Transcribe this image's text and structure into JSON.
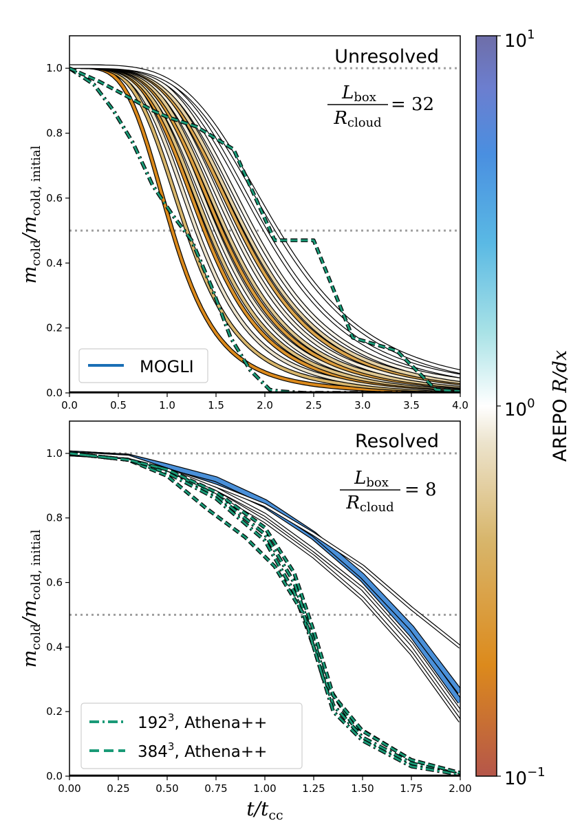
{
  "chart_data": [
    {
      "type": "line",
      "panel": "top",
      "annotation": "Unresolved",
      "ratio_numerator": "L",
      "ratio_numerator_sub": "box",
      "ratio_denominator": "R",
      "ratio_denominator_sub": "cloud",
      "ratio_value": "= 32",
      "xlim": [
        0,
        4
      ],
      "ylim": [
        0,
        1.1
      ],
      "xticks": [
        "0.0",
        "0.5",
        "1.0",
        "1.5",
        "2.0",
        "2.5",
        "3.0",
        "3.5",
        "4.0"
      ],
      "yticks": [
        "0.0",
        "0.2",
        "0.4",
        "0.6",
        "0.8",
        "1.0"
      ],
      "ylabel_main": "m",
      "ylabel_sub1": "cold",
      "ylabel_mid": "/m",
      "ylabel_sub2": "cold, initial",
      "reference_lines": [
        1.0,
        0.5
      ],
      "legend_label": "MOGLI",
      "legend_color": "#1a6fb5",
      "t_half": [
        1.05,
        1.2,
        1.3,
        1.38,
        1.43,
        1.5,
        1.55,
        1.6,
        1.68,
        1.75,
        1.8,
        1.88,
        2.0,
        2.12
      ],
      "athena_192": {
        "x": [
          0,
          0.25,
          0.45,
          0.65,
          0.85,
          1.05,
          1.25,
          1.45,
          1.65,
          1.85,
          2.05,
          2.15,
          2.4,
          4.0
        ],
        "y": [
          1.0,
          0.95,
          0.87,
          0.77,
          0.64,
          0.55,
          0.47,
          0.33,
          0.17,
          0.07,
          0.01,
          0.005,
          0.0,
          0.0
        ]
      },
      "athena_384": {
        "x": [
          0,
          0.3,
          0.55,
          0.85,
          1.0,
          1.3,
          1.68,
          2.1,
          2.5,
          2.9,
          3.35,
          3.75,
          4.0
        ],
        "y": [
          1.0,
          0.96,
          0.92,
          0.87,
          0.85,
          0.82,
          0.75,
          0.47,
          0.47,
          0.17,
          0.13,
          0.01,
          0.005
        ]
      }
    },
    {
      "type": "line",
      "panel": "bottom",
      "annotation": "Resolved",
      "ratio_numerator": "L",
      "ratio_numerator_sub": "box",
      "ratio_denominator": "R",
      "ratio_denominator_sub": "cloud",
      "ratio_value": "= 8",
      "xlim": [
        0,
        2
      ],
      "ylim": [
        0,
        1.1
      ],
      "xticks": [
        "0.00",
        "0.25",
        "0.50",
        "0.75",
        "1.00",
        "1.25",
        "1.50",
        "1.75",
        "2.00"
      ],
      "yticks": [
        "0.0",
        "0.2",
        "0.4",
        "0.6",
        "0.8",
        "1.0"
      ],
      "xlabel_main": "t/t",
      "xlabel_sub": "cc",
      "ylabel_main": "m",
      "ylabel_sub1": "cold",
      "ylabel_mid": "/m",
      "ylabel_sub2": "cold, initial",
      "reference_lines": [
        1.0,
        0.5
      ],
      "legend": [
        {
          "label_base": "192",
          "label_sup": "3",
          "label_rest": ", Athena++",
          "style": "dashdot"
        },
        {
          "label_base": "384",
          "label_sup": "3",
          "label_rest": ", Athena++",
          "style": "dashed"
        }
      ],
      "series": [
        {
          "name": "arepo_blue_a",
          "color": "#4a90d9",
          "x": [
            0,
            0.3,
            0.5,
            0.75,
            1.0,
            1.25,
            1.5,
            1.75,
            2.0
          ],
          "y": [
            1.0,
            0.99,
            0.96,
            0.91,
            0.84,
            0.74,
            0.61,
            0.44,
            0.23
          ]
        },
        {
          "name": "arepo_blue_b",
          "color": "#4a90d9",
          "x": [
            0,
            0.3,
            0.5,
            0.75,
            1.0,
            1.25,
            1.5,
            1.75,
            2.0
          ],
          "y": [
            1.0,
            0.99,
            0.96,
            0.92,
            0.85,
            0.75,
            0.62,
            0.46,
            0.26
          ]
        },
        {
          "name": "arepo_white_a",
          "color": "#ffffff",
          "x": [
            0,
            0.3,
            0.5,
            0.75,
            1.0,
            1.25,
            1.5,
            1.75,
            2.0
          ],
          "y": [
            1.0,
            0.99,
            0.95,
            0.9,
            0.84,
            0.75,
            0.65,
            0.52,
            0.4
          ]
        },
        {
          "name": "arepo_white_b",
          "color": "#ffffff",
          "x": [
            0,
            0.3,
            0.5,
            0.75,
            1.0,
            1.25,
            1.5,
            1.75,
            2.0
          ],
          "y": [
            1.0,
            0.99,
            0.95,
            0.88,
            0.79,
            0.68,
            0.55,
            0.38,
            0.17
          ]
        },
        {
          "name": "arepo_white_c",
          "color": "#ffffff",
          "x": [
            0,
            0.3,
            0.5,
            0.75,
            1.0,
            1.25,
            1.5,
            1.75,
            2.0
          ],
          "y": [
            1.0,
            0.99,
            0.95,
            0.89,
            0.81,
            0.7,
            0.58,
            0.41,
            0.2
          ]
        },
        {
          "name": "athena_192_a",
          "style": "dashdot",
          "x": [
            0,
            0.3,
            0.5,
            0.75,
            1.0,
            1.15,
            1.25,
            1.35,
            1.5,
            1.75,
            2.0
          ],
          "y": [
            1.0,
            0.98,
            0.95,
            0.87,
            0.75,
            0.6,
            0.42,
            0.22,
            0.12,
            0.04,
            0.005
          ]
        },
        {
          "name": "athena_192_b",
          "style": "dashdot",
          "x": [
            0,
            0.3,
            0.5,
            0.75,
            1.0,
            1.15,
            1.25,
            1.35,
            1.5,
            1.75,
            2.0
          ],
          "y": [
            1.0,
            0.98,
            0.94,
            0.86,
            0.73,
            0.57,
            0.4,
            0.2,
            0.11,
            0.03,
            0.005
          ]
        },
        {
          "name": "athena_384_a",
          "style": "dashed",
          "x": [
            0,
            0.3,
            0.5,
            0.7,
            0.9,
            1.05,
            1.2,
            1.3,
            1.45,
            1.75,
            2.0
          ],
          "y": [
            1.0,
            0.98,
            0.93,
            0.83,
            0.74,
            0.65,
            0.5,
            0.3,
            0.16,
            0.05,
            0.01
          ]
        },
        {
          "name": "athena_384_b",
          "style": "dashed",
          "x": [
            0,
            0.3,
            0.5,
            0.75,
            1.0,
            1.15,
            1.25,
            1.35,
            1.5,
            1.75,
            2.0
          ],
          "y": [
            1.0,
            0.98,
            0.95,
            0.88,
            0.77,
            0.63,
            0.45,
            0.25,
            0.14,
            0.05,
            0.01
          ]
        }
      ]
    }
  ],
  "colorbar": {
    "label_prefix": "AREPO ",
    "label_math": "R/dx",
    "tick_labels": [
      {
        "base": "10",
        "exp": "1"
      },
      {
        "base": "10",
        "exp": "0"
      },
      {
        "base": "10",
        "exp": "−1"
      }
    ],
    "range": [
      0.1,
      10
    ],
    "scale": "log",
    "colors": [
      "#b5564a",
      "#dc8a1c",
      "#d8b66c",
      "#ece3cc",
      "#ffffff",
      "#a8e2e6",
      "#5ab9e4",
      "#4a8fe0",
      "#6c7ecf",
      "#6e6ea8"
    ]
  },
  "colors": {
    "athena": "#1a9a77",
    "reference_line": "#a0a0a0"
  }
}
